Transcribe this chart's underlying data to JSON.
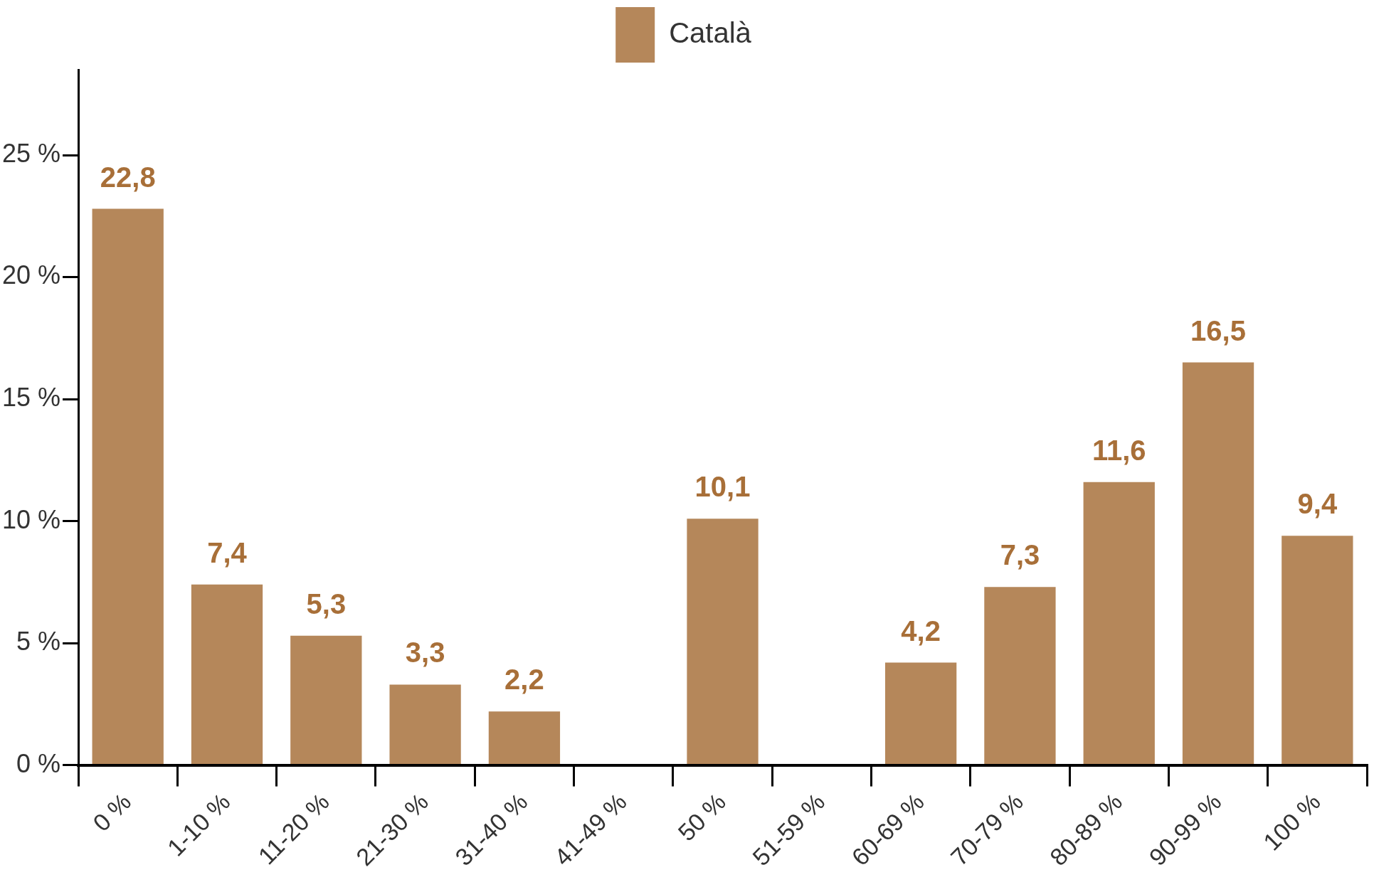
{
  "chart_data": {
    "type": "bar",
    "categories": [
      "0 %",
      "1-10 %",
      "11-20 %",
      "21-30 %",
      "31-40 %",
      "41-49 %",
      "50 %",
      "51-59 %",
      "60-69 %",
      "70-79 %",
      "80-89 %",
      "90-99 %",
      "100 %"
    ],
    "series": [
      {
        "name": "Català",
        "color": "#b5875a",
        "values": [
          22.8,
          7.4,
          5.3,
          3.3,
          2.2,
          null,
          10.1,
          null,
          4.2,
          7.3,
          11.6,
          16.5,
          9.4
        ],
        "value_labels": [
          "22,8",
          "7,4",
          "5,3",
          "3,3",
          "2,2",
          null,
          "10,1",
          null,
          "4,2",
          "7,3",
          "11,6",
          "16,5",
          "9,4"
        ]
      }
    ],
    "ylim": [
      0,
      28.5
    ],
    "yticks": [
      {
        "value": 0,
        "label": "0 %"
      },
      {
        "value": 5,
        "label": "5 %"
      },
      {
        "value": 10,
        "label": "10 %"
      },
      {
        "value": 15,
        "label": "15 %"
      },
      {
        "value": 20,
        "label": "20 %"
      },
      {
        "value": 25,
        "label": "25 %"
      }
    ],
    "grid": false,
    "legend": "top"
  }
}
